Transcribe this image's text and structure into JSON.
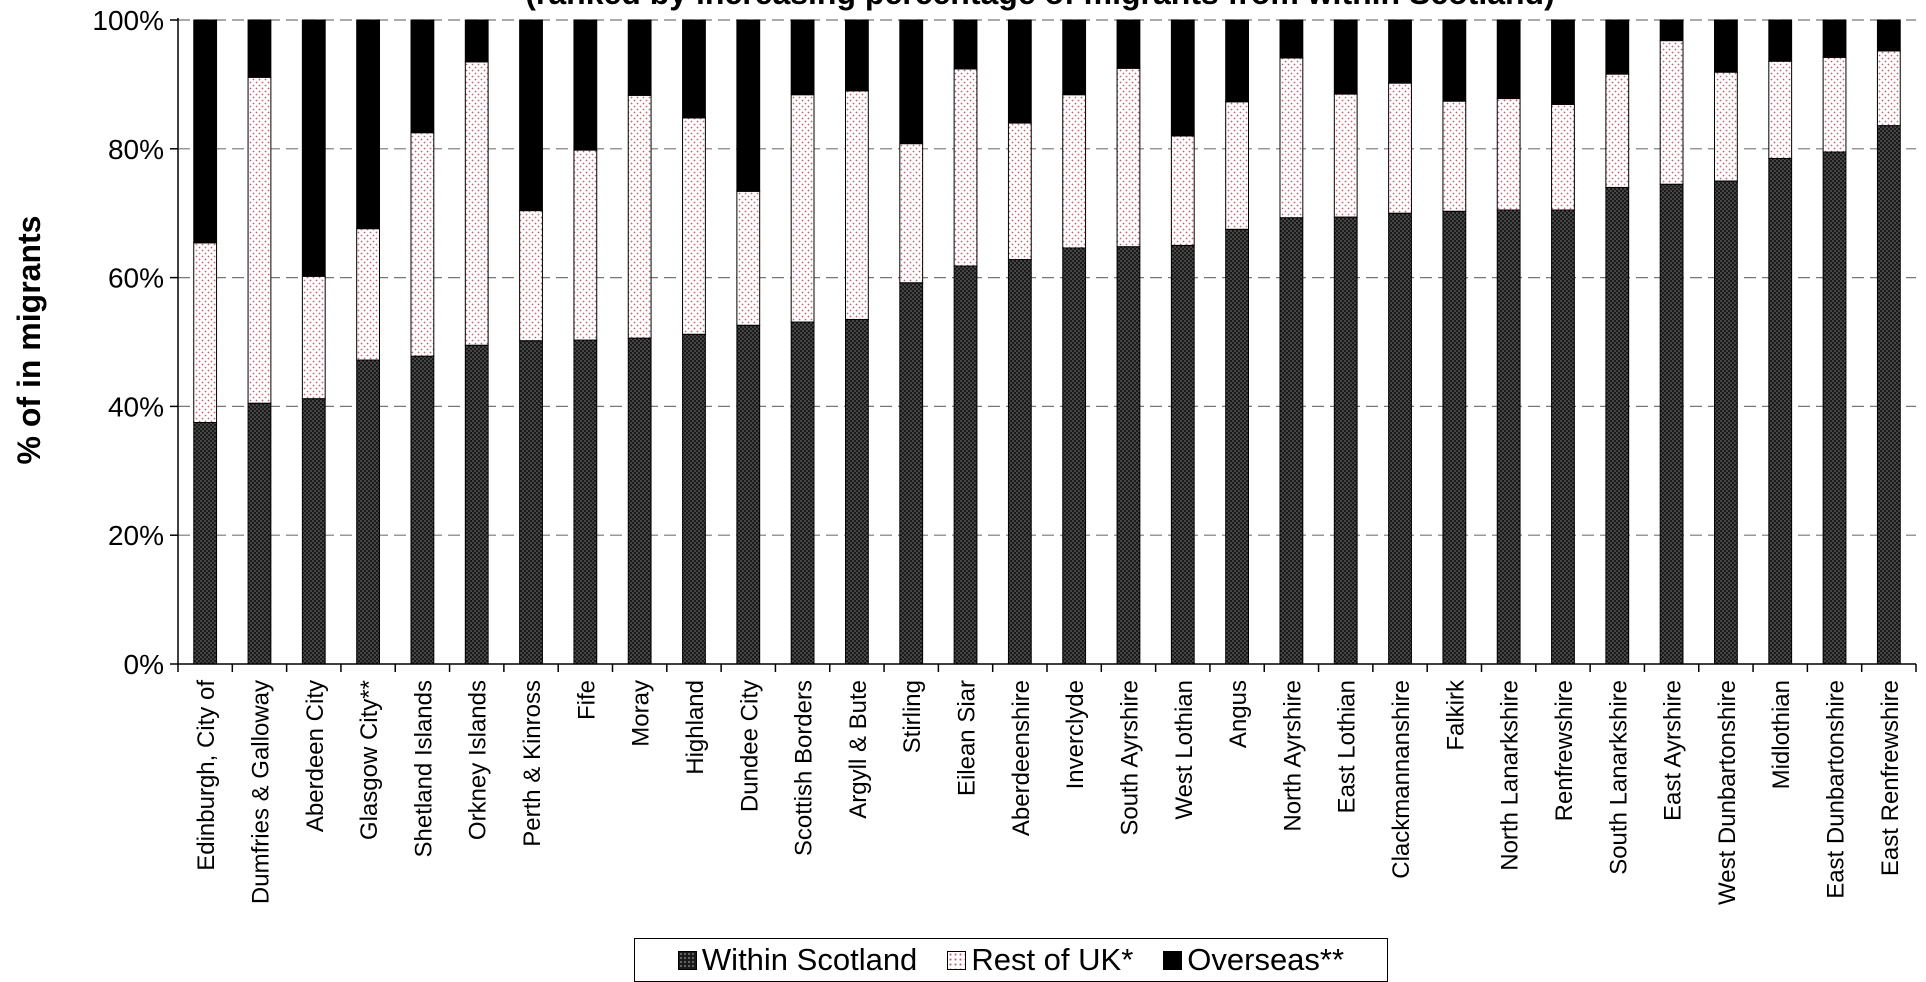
{
  "chart_data": {
    "type": "bar",
    "stacked": true,
    "title": "(ranked by increasing percentage of migrants from within Scotland)",
    "ylabel": "% of in migrants",
    "xlabel": "",
    "ylim": [
      0,
      100
    ],
    "yticks": [
      "0%",
      "20%",
      "40%",
      "60%",
      "80%",
      "100%"
    ],
    "grid": "horizontal dashed",
    "legend_position": "bottom",
    "categories": [
      "Edinburgh, City of",
      "Dumfries & Galloway",
      "Aberdeen City",
      "Glasgow City**",
      "Shetland Islands",
      "Orkney Islands",
      "Perth & Kinross",
      "Fife",
      "Moray",
      "Highland",
      "Dundee City",
      "Scottish Borders",
      "Argyll & Bute",
      "Stirling",
      "Eilean Siar",
      "Aberdeenshire",
      "Inverclyde",
      "South Ayrshire",
      "West Lothian",
      "Angus",
      "North Ayrshire",
      "East Lothian",
      "Clackmannanshire",
      "Falkirk",
      "North Lanarkshire",
      "Renfrewshire",
      "South Lanarkshire",
      "East Ayrshire",
      "West Dunbartonshire",
      "Midlothian",
      "East Dunbartonshire",
      "East Renfrewshire"
    ],
    "series": [
      {
        "name": "Within Scotland",
        "values": [
          37.5,
          40.5,
          41.2,
          47.2,
          47.8,
          49.5,
          50.2,
          50.3,
          50.6,
          51.2,
          52.6,
          53.1,
          53.5,
          59.2,
          61.8,
          62.8,
          64.6,
          64.8,
          65.0,
          67.5,
          69.3,
          69.4,
          70.0,
          70.3,
          70.5,
          70.5,
          74.0,
          74.5,
          75.0,
          78.5,
          79.5,
          83.6
        ]
      },
      {
        "name": "Rest of UK*",
        "values": [
          27.9,
          50.6,
          19.0,
          20.4,
          34.7,
          44.0,
          20.2,
          29.5,
          37.7,
          33.6,
          20.8,
          35.3,
          35.5,
          21.6,
          30.6,
          21.2,
          23.8,
          27.7,
          17.0,
          19.8,
          24.8,
          19.1,
          20.2,
          17.1,
          17.3,
          16.4,
          17.6,
          22.3,
          16.9,
          15.1,
          14.7,
          11.6
        ]
      },
      {
        "name": "Overseas**",
        "values": [
          34.6,
          8.9,
          39.8,
          32.4,
          17.5,
          6.5,
          29.6,
          20.2,
          11.7,
          15.2,
          26.6,
          11.6,
          11.0,
          19.2,
          7.6,
          16.0,
          11.6,
          7.5,
          18.0,
          12.7,
          5.9,
          11.5,
          9.8,
          12.6,
          12.2,
          13.1,
          8.4,
          3.2,
          8.1,
          6.4,
          5.8,
          4.8
        ]
      }
    ]
  },
  "legend": {
    "within_label": "Within Scotland",
    "rest_label": "Rest of UK*",
    "overseas_label": "Overseas**"
  }
}
